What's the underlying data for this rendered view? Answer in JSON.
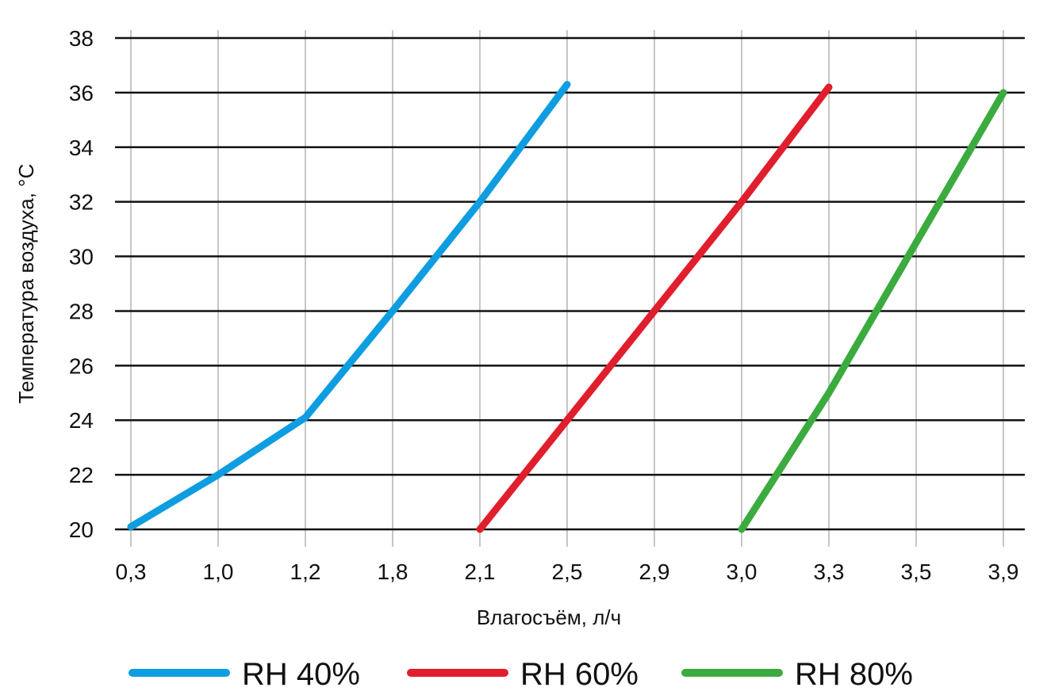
{
  "chart_data": {
    "type": "line",
    "title": "",
    "xlabel": "Влагосъём, л/ч",
    "ylabel": "Температура воздуха, °C",
    "x_categories": [
      "0,3",
      "1,0",
      "1,2",
      "1,8",
      "2,1",
      "2,5",
      "2,9",
      "3,0",
      "3,3",
      "3,5",
      "3,9"
    ],
    "y_ticks": [
      20,
      22,
      24,
      26,
      28,
      30,
      32,
      34,
      36,
      38
    ],
    "ylim": [
      20,
      38
    ],
    "grid": {
      "horizontal": true,
      "vertical": true
    },
    "legend_position": "bottom",
    "series": [
      {
        "name": "RH 40%",
        "color": "#0d9de0",
        "points": [
          [
            0,
            20.1
          ],
          [
            1,
            22.0
          ],
          [
            2,
            24.1
          ],
          [
            3,
            28.0
          ],
          [
            4,
            32.0
          ],
          [
            5,
            36.3
          ]
        ]
      },
      {
        "name": "RH 60%",
        "color": "#e01e2d",
        "points": [
          [
            4,
            20.0
          ],
          [
            5,
            24.0
          ],
          [
            6,
            28.0
          ],
          [
            7,
            32.0
          ],
          [
            8,
            36.2
          ]
        ]
      },
      {
        "name": "RH 80%",
        "color": "#3cab3f",
        "points": [
          [
            7,
            20.0
          ],
          [
            8,
            25.0
          ],
          [
            9,
            30.5
          ],
          [
            10,
            36.0
          ]
        ]
      }
    ]
  }
}
